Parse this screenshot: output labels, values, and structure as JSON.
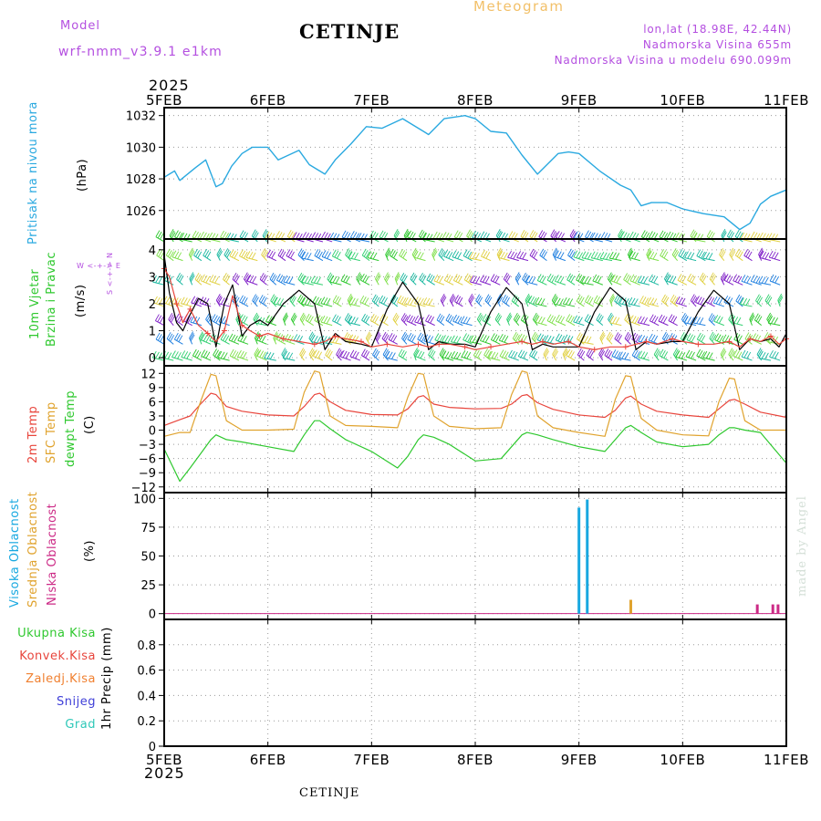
{
  "header": {
    "title": "CETINJE",
    "product": "Meteogram",
    "model_label": "Model",
    "model_name": "wrf-nmm_v3.9.1 e1km",
    "location": "lon,lat (18.98E, 42.44N)",
    "elevation": "Nadmorska Visina 655m",
    "model_elevation": "Nadmorska Visina u modelu 690.099m"
  },
  "footer": {
    "station": "CETINJE",
    "credit": "made by Angel"
  },
  "time_axis": {
    "year": "2025",
    "start_label": "5FEB",
    "labels": [
      "5FEB",
      "6FEB",
      "7FEB",
      "8FEB",
      "9FEB",
      "10FEB",
      "11FEB"
    ]
  },
  "colors": {
    "pressure": "#2aa9e0",
    "temp": "#e8453c",
    "sfc_temp": "#e0a32e",
    "dewpoint": "#2ec82e",
    "speed": "#000000",
    "gust": "#e8453c",
    "high_cloud": "#18a8e0",
    "mid_cloud": "#e0a32e",
    "low_cloud": "#cc2a86",
    "total_precip": "#2ec82e",
    "conv_precip": "#e8453c",
    "frz_precip": "#f08030",
    "snow": "#4040d8",
    "graupel": "#2ec8b8",
    "label_purple": "#b44fe0"
  },
  "panels": {
    "pressure": {
      "label": "Pritisak na nivou mora",
      "unit": "(hPa)"
    },
    "wind": {
      "label1": "10m Vjetar",
      "label2": "Brzina i Pravac",
      "unit": "(m/s)",
      "compass": "W <-+-> E",
      "compass_v": "S <-+-> N"
    },
    "temp": {
      "label_temp": "2m Temp",
      "label_sfc": "SFC Temp",
      "label_dew": "dewpt Temp",
      "unit": "(C)"
    },
    "cloud": {
      "label_high": "Visoka Oblacnost",
      "label_mid": "Srednja Oblacnost",
      "label_low": "Niska Oblacnost",
      "unit": "(%)"
    },
    "precip": {
      "labels": [
        "Ukupna Kisa",
        "Konvek.Kisa",
        "Zaledj.Kisa",
        "Snijeg",
        "Grad"
      ],
      "unit": "1hr Precip (mm)"
    }
  },
  "chart_data": [
    {
      "type": "line",
      "title": "",
      "ylabel": "Pritisak na nivou mora (hPa)",
      "ylim": [
        1024.2,
        1032.5
      ],
      "yticks": [
        1026,
        1028,
        1030,
        1032
      ],
      "x": [
        0,
        0.1,
        0.15,
        0.3,
        0.4,
        0.5,
        0.56,
        0.65,
        0.75,
        0.85,
        1.0,
        1.1,
        1.3,
        1.4,
        1.55,
        1.65,
        1.8,
        1.95,
        2.1,
        2.3,
        2.5,
        2.55,
        2.7,
        2.9,
        3.0,
        3.15,
        3.3,
        3.45,
        3.6,
        3.8,
        3.9,
        4.0,
        4.2,
        4.4,
        4.5,
        4.6,
        4.7,
        4.85,
        5.0,
        5.2,
        5.4,
        5.55,
        5.65,
        5.75,
        5.85,
        6.0
      ],
      "series": [
        {
          "values": [
            1028.1,
            1028.5,
            1027.9,
            1028.7,
            1029.2,
            1027.5,
            1027.7,
            1028.8,
            1029.6,
            1030.0,
            1030.0,
            1029.2,
            1029.8,
            1028.9,
            1028.3,
            1029.2,
            1030.2,
            1031.3,
            1031.2,
            1031.8,
            1031.0,
            1030.8,
            1031.8,
            1032.0,
            1031.8,
            1031.0,
            1030.9,
            1029.5,
            1028.3,
            1029.6,
            1029.7,
            1029.6,
            1028.5,
            1027.6,
            1027.3,
            1026.3,
            1026.5,
            1026.5,
            1026.1,
            1025.8,
            1025.6,
            1024.8,
            1025.2,
            1026.4,
            1026.9,
            1027.3
          ]
        }
      ]
    },
    {
      "type": "line",
      "title": "",
      "ylabel": "10m Vjetar Brzina i Pravac (m/s)",
      "ylim": [
        -0.3,
        4.4
      ],
      "yticks": [
        0,
        1,
        2,
        3,
        4
      ],
      "x": [
        0.0,
        0.05,
        0.12,
        0.18,
        0.25,
        0.33,
        0.42,
        0.5,
        0.58,
        0.66,
        0.75,
        0.83,
        0.92,
        1.0,
        1.15,
        1.3,
        1.45,
        1.55,
        1.65,
        1.75,
        1.9,
        2.0,
        2.15,
        2.3,
        2.45,
        2.55,
        2.65,
        2.75,
        2.9,
        3.0,
        3.15,
        3.3,
        3.45,
        3.55,
        3.65,
        3.75,
        3.9,
        4.0,
        4.15,
        4.3,
        4.45,
        4.55,
        4.65,
        4.75,
        4.9,
        5.0,
        5.15,
        5.3,
        5.45,
        5.55,
        5.65,
        5.75,
        5.85,
        5.93,
        6.0
      ],
      "series": [
        {
          "values": [
            3.8,
            2.4,
            1.3,
            1.0,
            1.6,
            2.2,
            2.0,
            0.4,
            2.0,
            2.7,
            0.8,
            1.2,
            1.4,
            1.2,
            2.0,
            2.5,
            2.0,
            0.3,
            0.9,
            0.6,
            0.5,
            0.4,
            1.8,
            2.8,
            2.0,
            0.3,
            0.6,
            0.5,
            0.5,
            0.4,
            1.7,
            2.6,
            2.0,
            0.3,
            0.5,
            0.4,
            0.4,
            0.4,
            1.7,
            2.6,
            2.1,
            0.3,
            0.6,
            0.5,
            0.6,
            0.6,
            1.7,
            2.5,
            2.0,
            0.3,
            0.7,
            0.6,
            0.7,
            0.4,
            0.9
          ]
        },
        {
          "values": [
            3.3,
            3.0,
            2.0,
            1.3,
            1.8,
            1.2,
            0.9,
            0.6,
            1.0,
            2.3,
            1.2,
            1.0,
            0.8,
            0.9,
            0.7,
            0.6,
            0.5,
            0.6,
            0.8,
            0.7,
            0.6,
            0.4,
            0.5,
            0.4,
            0.5,
            0.4,
            0.5,
            0.5,
            0.4,
            0.3,
            0.4,
            0.5,
            0.6,
            0.5,
            0.6,
            0.5,
            0.6,
            0.4,
            0.3,
            0.4,
            0.4,
            0.5,
            0.6,
            0.5,
            0.7,
            0.6,
            0.5,
            0.5,
            0.6,
            0.4,
            0.7,
            0.6,
            0.8,
            0.5,
            0.7
          ]
        }
      ]
    },
    {
      "type": "line",
      "title": "",
      "ylabel": "2m Temp / SFC Temp / dewpt Temp (C)",
      "ylim": [
        -13.2,
        13.6
      ],
      "yticks": [
        -12,
        -9,
        -6,
        -3,
        0,
        3,
        6,
        9,
        12
      ],
      "x": [
        0.0,
        0.15,
        0.25,
        0.35,
        0.45,
        0.5,
        0.6,
        0.75,
        1.0,
        1.25,
        1.35,
        1.45,
        1.5,
        1.6,
        1.75,
        2.0,
        2.25,
        2.35,
        2.45,
        2.5,
        2.6,
        2.75,
        3.0,
        3.25,
        3.35,
        3.45,
        3.5,
        3.6,
        3.75,
        4.0,
        4.25,
        4.35,
        4.45,
        4.5,
        4.6,
        4.75,
        5.0,
        5.25,
        5.35,
        5.45,
        5.5,
        5.6,
        5.75,
        6.0
      ],
      "series": [
        {
          "values": [
            1.0,
            2.2,
            3.0,
            5.5,
            7.8,
            7.5,
            5.0,
            4.0,
            3.2,
            3.0,
            5.0,
            7.5,
            7.8,
            6.0,
            4.2,
            3.3,
            3.2,
            4.5,
            7.0,
            7.3,
            5.5,
            4.8,
            4.5,
            4.6,
            5.5,
            7.3,
            7.5,
            5.8,
            4.4,
            3.2,
            2.7,
            4.2,
            6.8,
            7.2,
            5.5,
            4.0,
            3.2,
            2.7,
            4.5,
            6.3,
            6.5,
            5.5,
            3.8,
            2.7
          ]
        },
        {
          "values": [
            -1.3,
            -0.5,
            -0.5,
            6.0,
            11.8,
            11.5,
            2.0,
            0.0,
            0.0,
            0.2,
            8.0,
            12.5,
            12.2,
            3.0,
            1.0,
            0.8,
            0.5,
            7.0,
            12.0,
            11.8,
            3.0,
            0.8,
            0.3,
            0.5,
            7.5,
            12.5,
            12.2,
            3.0,
            0.5,
            -0.5,
            -1.3,
            6.5,
            11.5,
            11.3,
            2.5,
            0.0,
            -1.0,
            -1.2,
            6.0,
            11.0,
            10.8,
            2.0,
            0.0,
            0.0
          ]
        },
        {
          "values": [
            -4.0,
            -10.8,
            -8.0,
            -5.0,
            -2.0,
            -1.0,
            -2.0,
            -2.5,
            -3.5,
            -4.5,
            -1.0,
            2.0,
            2.0,
            0.3,
            -2.0,
            -4.5,
            -8.0,
            -5.5,
            -2.0,
            -1.0,
            -1.5,
            -3.0,
            -6.5,
            -6.0,
            -3.5,
            -1.0,
            -0.5,
            -1.0,
            -2.0,
            -3.5,
            -4.5,
            -2.0,
            0.5,
            1.0,
            -0.5,
            -2.5,
            -3.5,
            -3.0,
            -1.0,
            0.5,
            0.5,
            0.0,
            -0.5,
            -7.0
          ]
        }
      ]
    },
    {
      "type": "bar",
      "title": "",
      "ylabel": "Visoka / Srednja / Niska Oblacnost (%)",
      "ylim": [
        -5,
        105
      ],
      "yticks": [
        0,
        25,
        50,
        75,
        100
      ],
      "series": [
        {
          "name": "Visoka Oblacnost",
          "x": [
            4.0,
            4.08
          ],
          "values": [
            92,
            99
          ]
        },
        {
          "name": "Srednja Oblacnost",
          "x": [
            4.5
          ],
          "values": [
            12
          ]
        },
        {
          "name": "Niska Oblacnost",
          "x": [
            5.72,
            5.87,
            5.92
          ],
          "values": [
            8,
            8,
            8
          ]
        }
      ]
    },
    {
      "type": "bar",
      "title": "",
      "ylabel": "1hr Precip (mm)",
      "ylim": [
        0,
        1.0
      ],
      "yticks": [
        0,
        0.2,
        0.4,
        0.6,
        0.8
      ],
      "series": [
        {
          "values": []
        }
      ]
    }
  ]
}
